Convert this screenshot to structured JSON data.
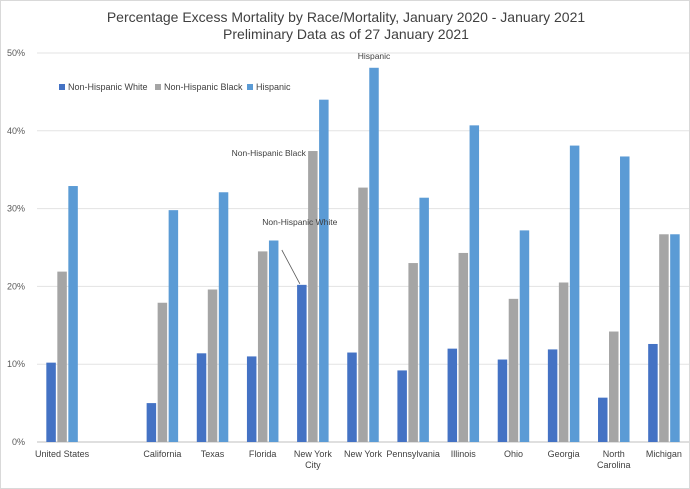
{
  "chart_data": {
    "type": "bar",
    "title": "Percentage Excess Mortality by Race/Mortality, January 2020 - January 2021",
    "subtitle": "Preliminary Data as of 27 January 2021",
    "categories": [
      "United States",
      "California",
      "Texas",
      "Florida",
      "New York City",
      "New York",
      "Pennsylvania",
      "Illinois",
      "Ohio",
      "Georgia",
      "North Carolina",
      "Michigan"
    ],
    "series": [
      {
        "name": "Non-Hispanic White",
        "color": "#4472c4",
        "values": [
          10.2,
          5.0,
          11.4,
          11.0,
          20.2,
          11.5,
          9.2,
          12.0,
          10.6,
          11.9,
          5.7,
          12.6
        ]
      },
      {
        "name": "Non-Hispanic Black",
        "color": "#a5a5a5",
        "values": [
          21.9,
          17.9,
          19.6,
          24.5,
          37.4,
          32.7,
          23.0,
          24.3,
          18.4,
          20.5,
          14.2,
          26.7
        ]
      },
      {
        "name": "Hispanic",
        "color": "#5b9bd5",
        "values": [
          32.9,
          29.8,
          32.1,
          25.9,
          44.0,
          48.1,
          31.4,
          40.7,
          27.2,
          38.1,
          36.7,
          26.7
        ]
      }
    ],
    "ylim": [
      0,
      50
    ],
    "yticks": [
      "0%",
      "10%",
      "20%",
      "30%",
      "40%",
      "50%"
    ],
    "legend_position": "top-left",
    "grid": true,
    "annotations": [
      {
        "text": "Hispanic",
        "category": "New York",
        "series": "Hispanic"
      },
      {
        "text": "Non-Hispanic Black",
        "category": "New York City",
        "series": "Non-Hispanic Black"
      },
      {
        "text": "Non-Hispanic White",
        "category": "New York City",
        "series": "Non-Hispanic White"
      }
    ]
  }
}
